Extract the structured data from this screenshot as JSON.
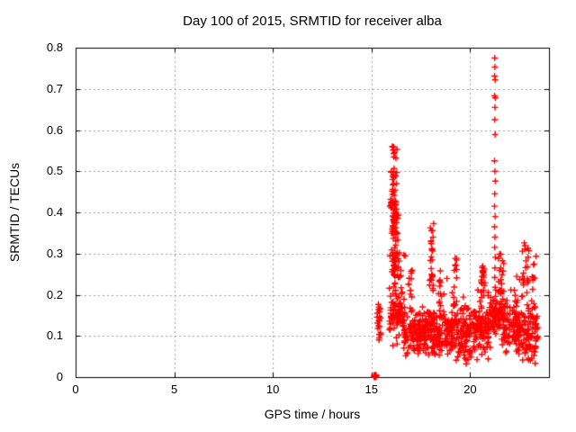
{
  "window": {
    "background": "#ffffff"
  },
  "chart_data": {
    "type": "scatter",
    "title": "Day 100 of 2015, SRMTID for receiver alba",
    "xlabel": "GPS time / hours",
    "ylabel": "SRMTID / TECUs",
    "xlim": [
      0,
      24
    ],
    "ylim": [
      0,
      0.8
    ],
    "xtick_labels": [
      "0",
      "5",
      "10",
      "15",
      "20"
    ],
    "ytick_labels": [
      "0",
      "0.1",
      "0.2",
      "0.3",
      "0.4",
      "0.5",
      "0.6",
      "0.7",
      "0.8"
    ],
    "grid": true,
    "grid_style": "dashed",
    "legend": "none",
    "marker": "plus",
    "colors": {
      "marker": "#ff0000",
      "grid": "#a2a2a2",
      "axis": "#000000",
      "text": "#000000"
    },
    "data_extent": {
      "x_min_hours": 15.1,
      "x_max_hours": 23.5,
      "y_min": 0.0,
      "y_max": 0.78
    },
    "peak_points": [
      [
        21.25,
        0.775
      ],
      [
        21.26,
        0.753
      ],
      [
        21.24,
        0.731
      ],
      [
        21.27,
        0.722
      ],
      [
        21.24,
        0.683
      ],
      [
        21.28,
        0.678
      ],
      [
        21.26,
        0.655
      ],
      [
        21.25,
        0.625
      ],
      [
        21.27,
        0.589
      ],
      [
        21.24,
        0.525
      ],
      [
        21.26,
        0.5
      ],
      [
        21.28,
        0.476
      ],
      [
        21.25,
        0.445
      ],
      [
        21.24,
        0.415
      ],
      [
        21.27,
        0.39
      ],
      [
        21.24,
        0.365
      ],
      [
        21.26,
        0.34
      ],
      [
        21.25,
        0.315
      ],
      [
        21.28,
        0.291
      ],
      [
        21.26,
        0.265
      ],
      [
        21.25,
        0.242
      ],
      [
        21.27,
        0.218
      ],
      [
        21.29,
        0.196
      ]
    ],
    "clusters": [
      {
        "x0": 15.13,
        "x1": 15.24,
        "y0": 0.0,
        "y1": 0.005,
        "n": 40,
        "mode": "uni",
        "note": "zero clump at ~15.2 h"
      },
      {
        "x0": 15.25,
        "x1": 15.5,
        "y0": 0.09,
        "y1": 0.195,
        "n": 22,
        "mode": "col"
      },
      {
        "x0": 15.95,
        "x1": 16.3,
        "y0": 0.37,
        "y1": 0.578,
        "n": 38,
        "mode": "col",
        "note": "main spike top ~0.58"
      },
      {
        "x0": 15.9,
        "x1": 16.5,
        "y0": 0.24,
        "y1": 0.43,
        "n": 70,
        "mode": "col"
      },
      {
        "x0": 16.05,
        "x1": 16.75,
        "y0": 0.14,
        "y1": 0.3,
        "n": 38,
        "mode": "uni"
      },
      {
        "x0": 15.9,
        "x1": 16.7,
        "y0": 0.07,
        "y1": 0.22,
        "n": 55,
        "mode": "band"
      },
      {
        "x0": 16.6,
        "x1": 17.5,
        "y0": 0.04,
        "y1": 0.17,
        "n": 90,
        "mode": "band"
      },
      {
        "x0": 16.85,
        "x1": 17.15,
        "y0": 0.15,
        "y1": 0.26,
        "n": 12,
        "mode": "col"
      },
      {
        "x0": 17.4,
        "x1": 18.25,
        "y0": 0.05,
        "y1": 0.18,
        "n": 95,
        "mode": "band"
      },
      {
        "x0": 17.92,
        "x1": 18.18,
        "y0": 0.21,
        "y1": 0.375,
        "n": 26,
        "mode": "col",
        "note": "spike to ~0.37 at 18 h"
      },
      {
        "x0": 18.15,
        "x1": 19.15,
        "y0": 0.04,
        "y1": 0.17,
        "n": 100,
        "mode": "band"
      },
      {
        "x0": 18.3,
        "x1": 18.6,
        "y0": 0.14,
        "y1": 0.26,
        "n": 12,
        "mode": "col"
      },
      {
        "x0": 19.05,
        "x1": 20.05,
        "y0": 0.03,
        "y1": 0.19,
        "n": 100,
        "mode": "band"
      },
      {
        "x0": 19.15,
        "x1": 19.38,
        "y0": 0.17,
        "y1": 0.305,
        "n": 13,
        "mode": "col"
      },
      {
        "x0": 19.95,
        "x1": 20.95,
        "y0": 0.04,
        "y1": 0.18,
        "n": 100,
        "mode": "band"
      },
      {
        "x0": 20.45,
        "x1": 20.78,
        "y0": 0.16,
        "y1": 0.285,
        "n": 22,
        "mode": "col"
      },
      {
        "x0": 20.85,
        "x1": 21.75,
        "y0": 0.07,
        "y1": 0.23,
        "n": 90,
        "mode": "band"
      },
      {
        "x0": 21.42,
        "x1": 21.75,
        "y0": 0.14,
        "y1": 0.3,
        "n": 26,
        "mode": "col"
      },
      {
        "x0": 21.7,
        "x1": 22.55,
        "y0": 0.05,
        "y1": 0.2,
        "n": 90,
        "mode": "band"
      },
      {
        "x0": 22.45,
        "x1": 23.45,
        "y0": 0.02,
        "y1": 0.19,
        "n": 95,
        "mode": "band"
      },
      {
        "x0": 22.6,
        "x1": 23.05,
        "y0": 0.19,
        "y1": 0.335,
        "n": 20,
        "mode": "col",
        "note": "spike to ~0.33 at 22.8 h"
      },
      {
        "x0": 23.05,
        "x1": 23.45,
        "y0": 0.14,
        "y1": 0.295,
        "n": 16,
        "mode": "col"
      },
      {
        "x0": 16.6,
        "x1": 23.3,
        "y0": 0.19,
        "y1": 0.245,
        "n": 18,
        "mode": "uni"
      }
    ],
    "seed": 123457
  }
}
